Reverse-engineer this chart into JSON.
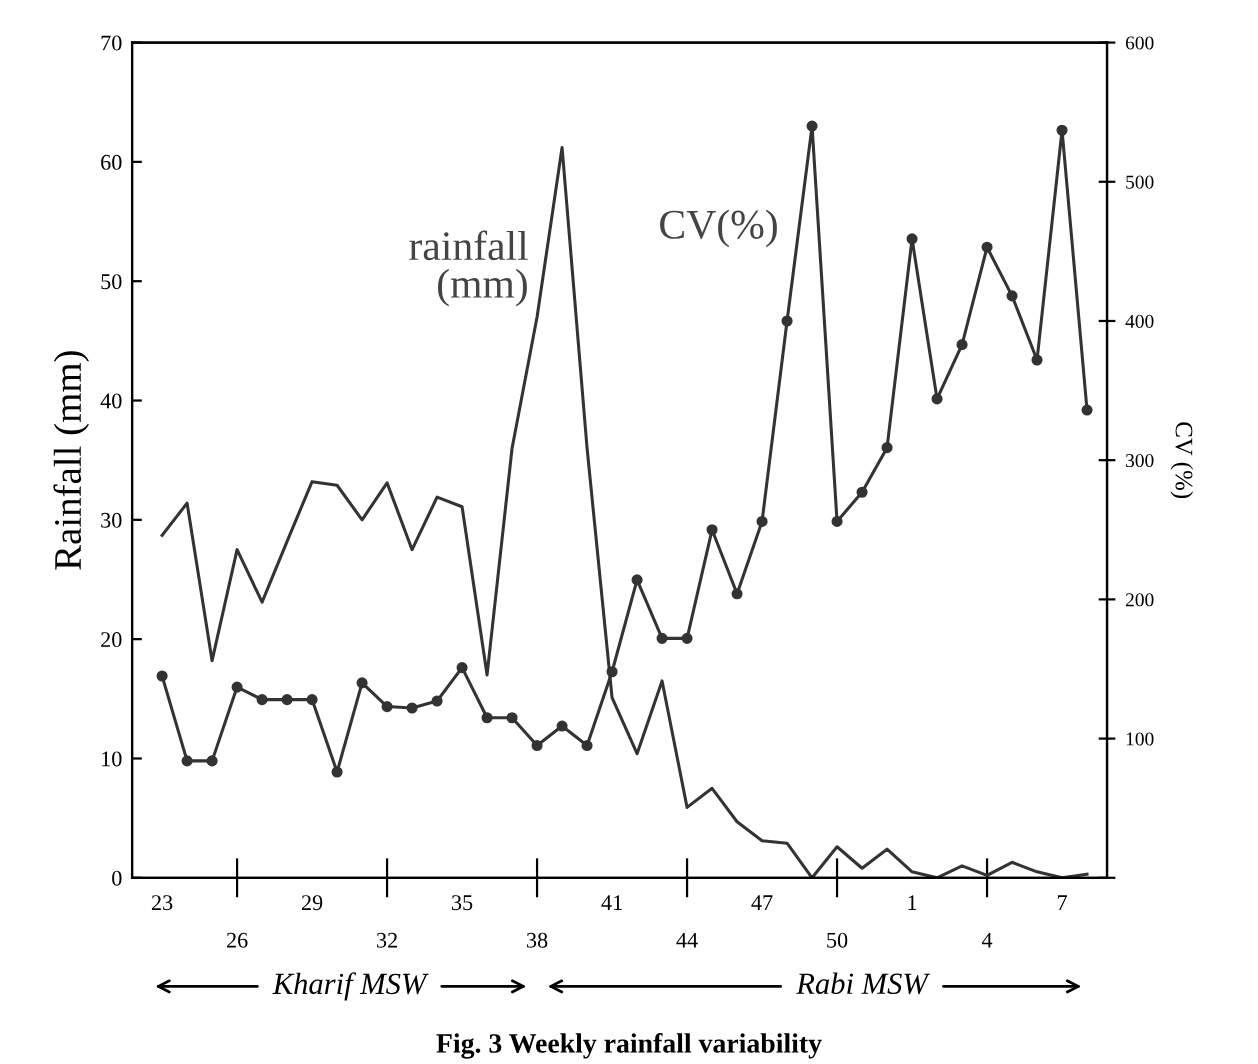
{
  "chart_data": {
    "type": "line",
    "ylabel": "Rainfall (mm)",
    "y2label": "CV (%)",
    "categories": [
      "23",
      null,
      null,
      "26",
      null,
      null,
      "29",
      null,
      null,
      "32",
      null,
      null,
      "35",
      null,
      null,
      "38",
      null,
      null,
      "41",
      null,
      null,
      "44",
      null,
      null,
      "47",
      null,
      null,
      "50",
      null,
      null,
      "1",
      null,
      null,
      "4",
      null,
      null,
      "7",
      null
    ],
    "series": [
      {
        "name": "rainfall\n(mm)",
        "color": "#333333",
        "marker": "none",
        "values": [
          28.7,
          31.4,
          18.2,
          27.5,
          23.1,
          28.2,
          33.2,
          32.9,
          30.0,
          33.1,
          27.5,
          31.9,
          31.1,
          17.0,
          36.0,
          47.0,
          61.2,
          36.0,
          15.1,
          10.4,
          16.5,
          5.9,
          7.5,
          4.7,
          3.1,
          2.9,
          0.0,
          2.6,
          0.8,
          2.4,
          0.5,
          0.0,
          1.0,
          0.2,
          1.3,
          0.5,
          0.0,
          0.3
        ]
      },
      {
        "name": "CV(%)",
        "color": "#333333",
        "marker": "circle",
        "axis": "y2",
        "values": [
          145,
          84,
          84,
          137,
          128,
          128,
          128,
          76,
          140,
          123,
          122,
          127,
          151,
          115,
          115,
          95,
          109,
          95,
          148,
          214,
          172,
          172,
          250,
          204,
          256,
          400,
          540,
          256,
          277,
          309,
          459,
          344,
          383,
          453,
          418,
          372,
          537,
          336
        ]
      }
    ],
    "ylim": [
      0,
      70
    ],
    "yticks": [
      0,
      10,
      20,
      30,
      40,
      50,
      60,
      70
    ],
    "y2lim": [
      0,
      600
    ],
    "y2ticks": [
      {
        "value": 0,
        "label": null
      },
      100,
      200,
      300,
      400,
      500,
      600
    ],
    "grid": false,
    "legend": false,
    "annotations": [
      "Kharif MSW",
      "Rabi MSW",
      "Fig. 3 Weekly rainfall variability"
    ]
  }
}
